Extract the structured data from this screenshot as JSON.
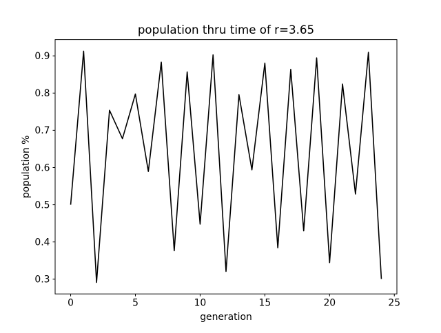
{
  "chart_data": {
    "type": "line",
    "title": "population thru time of r=3.65",
    "xlabel": "generation",
    "ylabel": "population %",
    "x": [
      0,
      1,
      2,
      3,
      4,
      5,
      6,
      7,
      8,
      9,
      10,
      11,
      12,
      13,
      14,
      15,
      16,
      17,
      18,
      19,
      20,
      21,
      22,
      23,
      24
    ],
    "values": [
      0.5,
      0.9125,
      0.2914,
      0.7537,
      0.6775,
      0.7975,
      0.5896,
      0.8832,
      0.3765,
      0.8568,
      0.4479,
      0.9026,
      0.3209,
      0.7955,
      0.5938,
      0.8804,
      0.3843,
      0.8637,
      0.4298,
      0.8945,
      0.3445,
      0.8242,
      0.5288,
      0.9095,
      0.3005
    ],
    "x_ticks": [
      0,
      5,
      10,
      15,
      20,
      25
    ],
    "y_ticks": [
      0.3,
      0.4,
      0.5,
      0.6,
      0.7,
      0.8,
      0.9
    ],
    "xlim": [
      -1.2,
      25.2
    ],
    "ylim": [
      0.2604,
      0.9436
    ],
    "grid": false,
    "legend": null,
    "line_color": "#000000",
    "background_color": "#ffffff",
    "spine_color": "#000000"
  }
}
